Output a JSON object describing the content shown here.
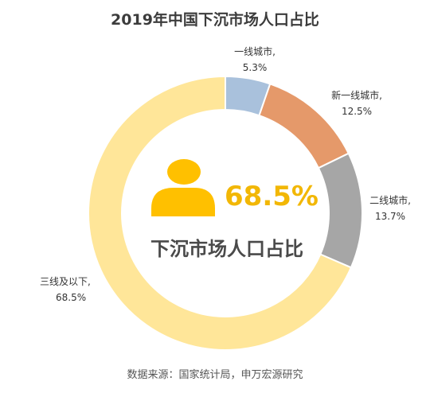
{
  "chart_data": {
    "type": "pie",
    "title": "2019年中国下沉市场人口占比",
    "categories": [
      "一线城市",
      "新一线城市",
      "二线城市",
      "三线及以下"
    ],
    "values": [
      5.3,
      12.5,
      13.7,
      68.5
    ],
    "label_suffix": ",",
    "unit": "%",
    "colors": [
      "#A9C1DC",
      "#E5996A",
      "#A6A6A6",
      "#FFE699"
    ],
    "center_value": "68.5%",
    "center_caption": "下沉市场人口占比",
    "center_icon": "person-icon",
    "source": "数据来源：国家统计局，申万宏源研究"
  }
}
